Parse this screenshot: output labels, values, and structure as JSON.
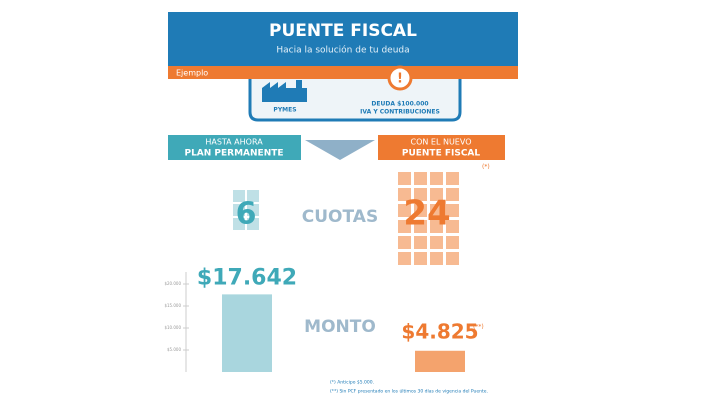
{
  "header": {
    "title": "PUENTE FISCAL",
    "subtitle": "Hacia la solución de tu deuda",
    "tag": "Ejemplo"
  },
  "example": {
    "company": "PYMES",
    "debt": "DEUDA $100.000",
    "debt_detail": "IVA Y CONTRIBUCIONES"
  },
  "plans": {
    "current": {
      "line1": "HASTA AHORA",
      "line2": "PLAN PERMANENTE",
      "color": "#3fa9b8"
    },
    "new": {
      "line1": "CON EL NUEVO",
      "line2": "PUENTE FISCAL",
      "note": "(*)",
      "color": "#ee7a31"
    }
  },
  "installments": {
    "label": "CUOTAS",
    "current": 6,
    "new": 24
  },
  "amount": {
    "label": "MONTO",
    "ylim": [
      0,
      20000
    ],
    "yticks": [
      {
        "value": 5000,
        "label": "$5.000"
      },
      {
        "value": 10000,
        "label": "$10.000"
      },
      {
        "value": 15000,
        "label": "$15.000"
      },
      {
        "value": 20000,
        "label": "$20.000"
      }
    ],
    "current": {
      "value": 17642,
      "value_label": "$17.642"
    },
    "new": {
      "value": 4825,
      "value_label": "$4.825",
      "note": "(**)"
    }
  },
  "footnotes": [
    "(*) Anticipo $5.000.",
    "(**) Sin PCF presentado en los últimos 30 días de vigencia del Puente."
  ]
}
